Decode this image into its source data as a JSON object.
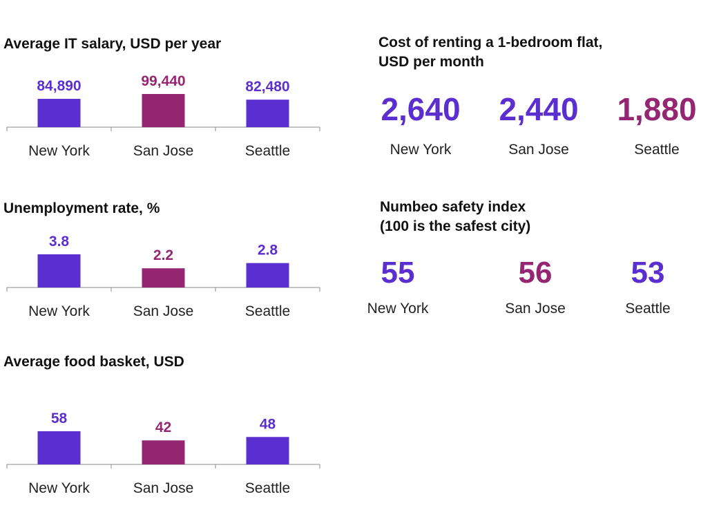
{
  "colors": {
    "blue": "#5b2fcf",
    "magenta": "#952671"
  },
  "chart_data": [
    {
      "id": "it-salary",
      "type": "bar",
      "title": "Average IT salary, USD per year",
      "categories": [
        "New York",
        "San Jose",
        "Seattle"
      ],
      "values": [
        84890,
        99440,
        82480
      ],
      "value_labels": [
        "84,890",
        "99,440",
        "82,480"
      ],
      "bar_colors": [
        "blue",
        "magenta",
        "blue"
      ],
      "ylim": [
        0,
        99440
      ]
    },
    {
      "id": "unemployment",
      "type": "bar",
      "title": "Unemployment rate, %",
      "categories": [
        "New York",
        "San Jose",
        "Seattle"
      ],
      "values": [
        3.8,
        2.2,
        2.8
      ],
      "value_labels": [
        "3.8",
        "2.2",
        "2.8"
      ],
      "bar_colors": [
        "blue",
        "magenta",
        "blue"
      ],
      "ylim": [
        0,
        3.8
      ]
    },
    {
      "id": "food-basket",
      "type": "bar",
      "title": "Average food basket, USD",
      "categories": [
        "New York",
        "San Jose",
        "Seattle"
      ],
      "values": [
        58,
        42,
        48
      ],
      "value_labels": [
        "58",
        "42",
        "48"
      ],
      "bar_colors": [
        "blue",
        "magenta",
        "blue"
      ],
      "ylim": [
        0,
        58
      ]
    },
    {
      "id": "rent",
      "type": "table",
      "title_lines": [
        "Cost of renting a 1-bedroom flat,",
        "USD per month"
      ],
      "categories": [
        "New York",
        "San Jose",
        "Seattle"
      ],
      "values": [
        2640,
        2440,
        1880
      ],
      "value_labels": [
        "2,640",
        "2,440",
        "1,880"
      ],
      "value_colors": [
        "blue",
        "blue",
        "magenta"
      ]
    },
    {
      "id": "safety",
      "type": "table",
      "title_lines": [
        "Numbeo safety index",
        "(100 is the safest city)"
      ],
      "categories": [
        "New York",
        "San Jose",
        "Seattle"
      ],
      "values": [
        55,
        56,
        53
      ],
      "value_labels": [
        "55",
        "56",
        "53"
      ],
      "value_colors": [
        "blue",
        "magenta",
        "blue"
      ]
    }
  ]
}
